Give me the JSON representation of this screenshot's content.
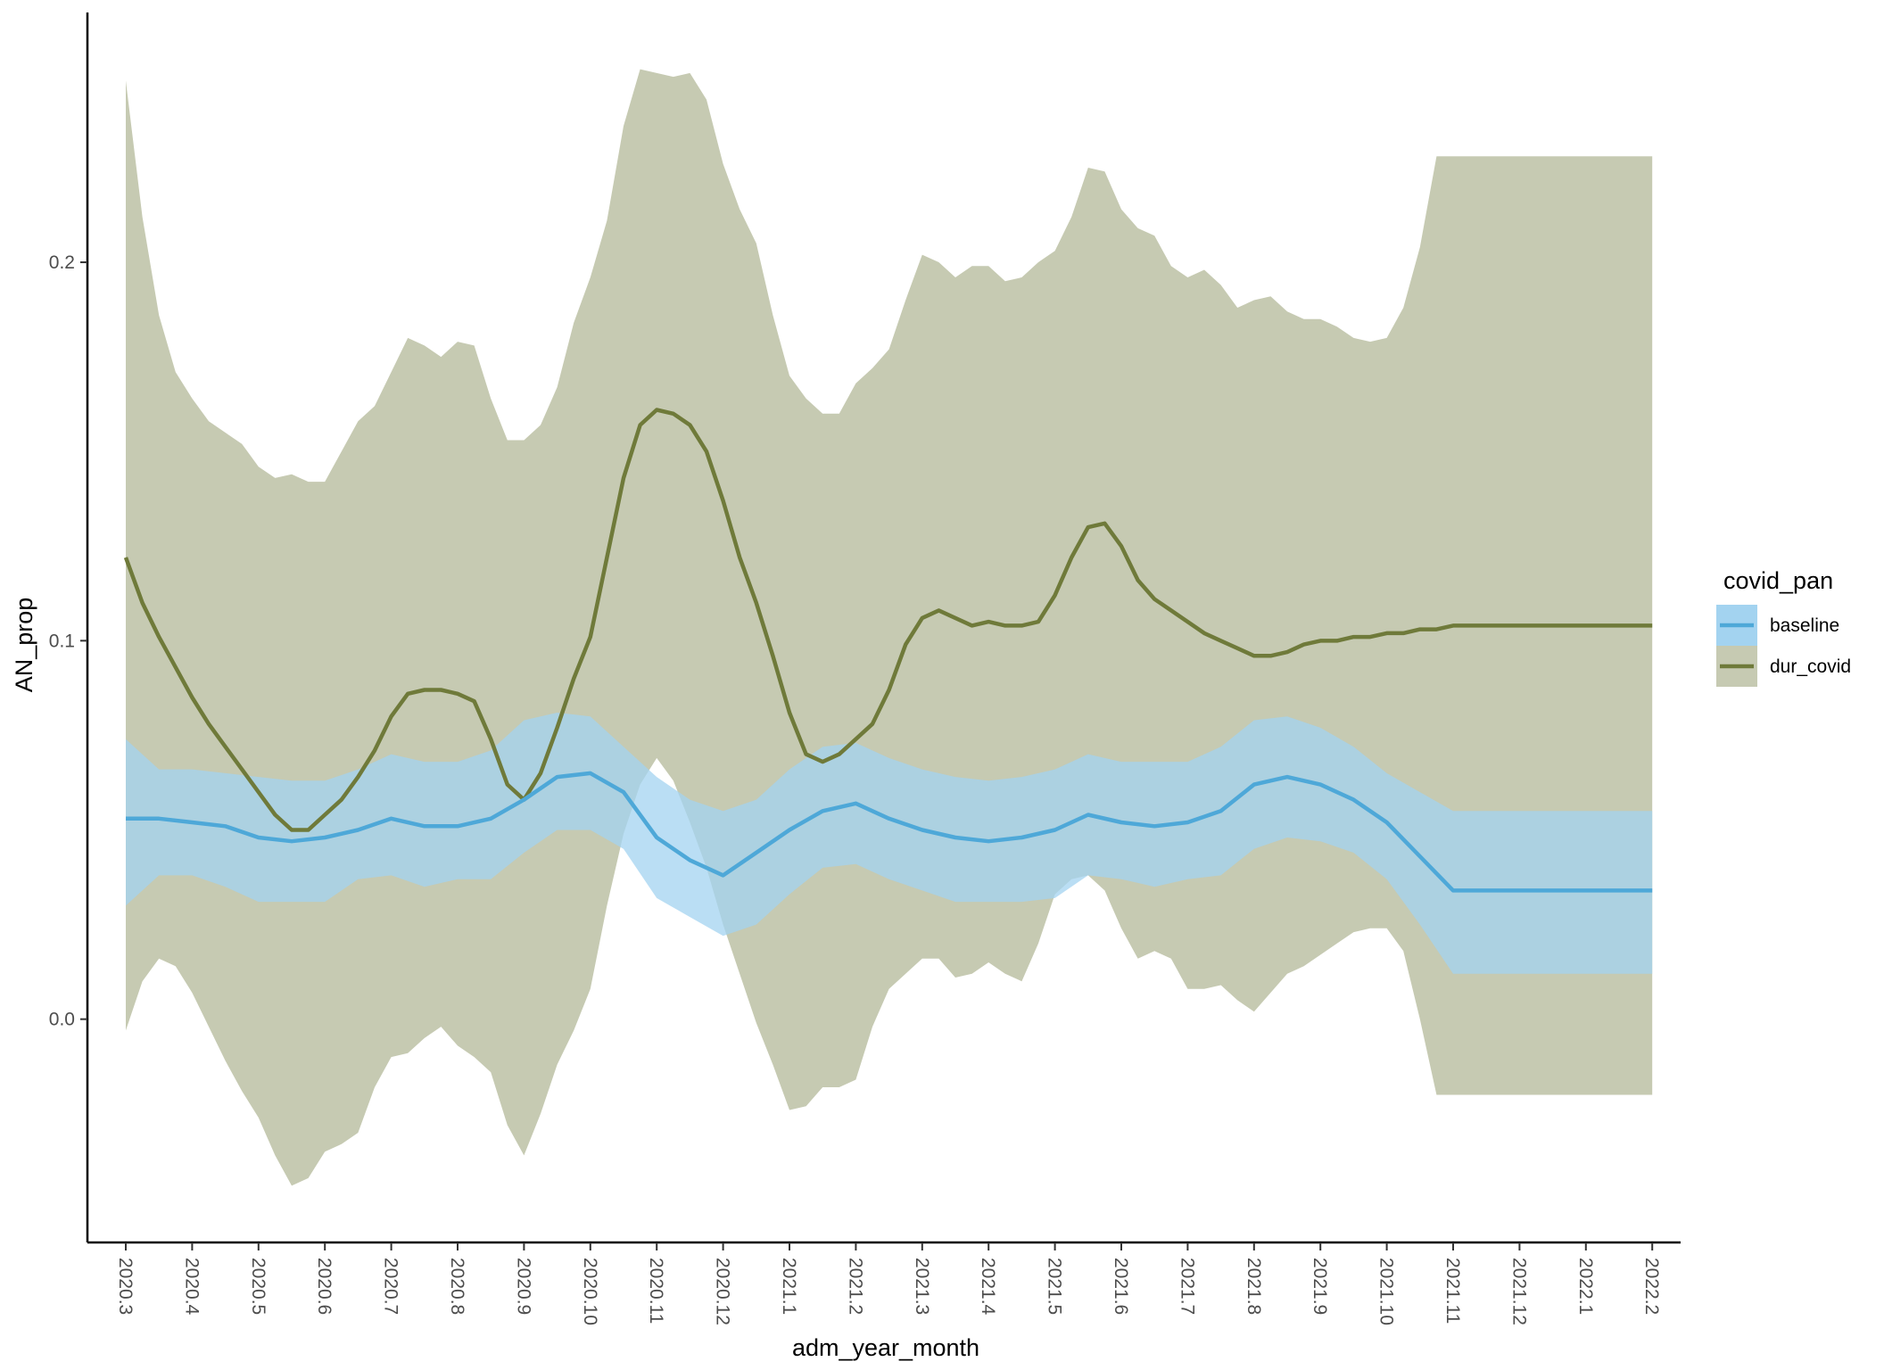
{
  "chart_data": {
    "type": "line",
    "xlabel": "adm_year_month",
    "ylabel": "AN_prop",
    "ylim": [
      -0.059,
      0.266
    ],
    "y_ticks": [
      0.0,
      0.1,
      0.2
    ],
    "y_tick_labels": [
      "0.0",
      "0.1",
      "0.2"
    ],
    "x_tick_labels": [
      "2020.3",
      "2020.4",
      "2020.5",
      "2020.6",
      "2020.7",
      "2020.8",
      "2020.9",
      "2020.10",
      "2020.11",
      "2020.12",
      "2021.1",
      "2021.2",
      "2021.3",
      "2021.4",
      "2021.5",
      "2021.6",
      "2021.7",
      "2021.8",
      "2021.9",
      "2021.10",
      "2021.11",
      "2021.12",
      "2022.1",
      "2022.2"
    ],
    "grid": false,
    "legend": {
      "title": "covid_pan",
      "placement": "right"
    },
    "series": [
      {
        "name": "baseline",
        "color": "#4ea8d8",
        "fill": "#a3d3f0",
        "x": [
          0,
          0.5,
          1,
          1.5,
          2,
          2.5,
          3,
          3.5,
          4,
          4.5,
          5,
          5.5,
          6,
          6.5,
          7,
          7.5,
          8,
          8.5,
          9,
          9.5,
          10,
          10.5,
          11,
          11.5,
          12,
          12.5,
          13,
          13.5,
          14,
          14.5,
          15,
          15.5,
          16,
          16.5,
          17,
          17.5,
          18,
          18.5,
          19,
          19.5,
          20,
          20.5,
          21,
          21.5,
          22,
          22.5,
          23
        ],
        "y": [
          0.053,
          0.053,
          0.052,
          0.051,
          0.048,
          0.047,
          0.048,
          0.05,
          0.053,
          0.051,
          0.051,
          0.053,
          0.058,
          0.064,
          0.065,
          0.06,
          0.048,
          0.042,
          0.038,
          0.044,
          0.05,
          0.055,
          0.057,
          0.053,
          0.05,
          0.048,
          0.047,
          0.048,
          0.05,
          0.054,
          0.052,
          0.051,
          0.052,
          0.055,
          0.062,
          0.064,
          0.062,
          0.058,
          0.052,
          0.043,
          0.034,
          0.034,
          0.034,
          0.034,
          0.034,
          0.034,
          0.034
        ],
        "lower": [
          0.03,
          0.038,
          0.038,
          0.035,
          0.031,
          0.031,
          0.031,
          0.037,
          0.038,
          0.035,
          0.037,
          0.037,
          0.044,
          0.05,
          0.05,
          0.045,
          0.032,
          0.027,
          0.022,
          0.025,
          0.033,
          0.04,
          0.041,
          0.037,
          0.034,
          0.031,
          0.031,
          0.031,
          0.032,
          0.038,
          0.037,
          0.035,
          0.037,
          0.038,
          0.045,
          0.048,
          0.047,
          0.044,
          0.037,
          0.025,
          0.012,
          0.012,
          0.012,
          0.012,
          0.012,
          0.012,
          0.012
        ],
        "upper": [
          0.074,
          0.066,
          0.066,
          0.065,
          0.064,
          0.063,
          0.063,
          0.066,
          0.07,
          0.068,
          0.068,
          0.071,
          0.079,
          0.081,
          0.08,
          0.072,
          0.064,
          0.058,
          0.055,
          0.058,
          0.066,
          0.072,
          0.073,
          0.069,
          0.066,
          0.064,
          0.063,
          0.064,
          0.066,
          0.07,
          0.068,
          0.068,
          0.068,
          0.072,
          0.079,
          0.08,
          0.077,
          0.072,
          0.065,
          0.06,
          0.055,
          0.055,
          0.055,
          0.055,
          0.055,
          0.055,
          0.055
        ]
      },
      {
        "name": "dur_covid",
        "color": "#6f7a3a",
        "fill": "#c6cab2",
        "x": [
          0,
          0.25,
          0.5,
          0.75,
          1,
          1.25,
          1.5,
          1.75,
          2,
          2.25,
          2.5,
          2.75,
          3,
          3.25,
          3.5,
          3.75,
          4,
          4.25,
          4.5,
          4.75,
          5,
          5.25,
          5.5,
          5.75,
          6,
          6.25,
          6.5,
          6.75,
          7,
          7.25,
          7.5,
          7.75,
          8,
          8.25,
          8.5,
          8.75,
          9,
          9.25,
          9.5,
          9.75,
          10,
          10.25,
          10.5,
          10.75,
          11,
          11.25,
          11.5,
          11.75,
          12,
          12.25,
          12.5,
          12.75,
          13,
          13.25,
          13.5,
          13.75,
          14,
          14.25,
          14.5,
          14.75,
          15,
          15.25,
          15.5,
          15.75,
          16,
          16.25,
          16.5,
          16.75,
          17,
          17.25,
          17.5,
          17.75,
          18,
          18.25,
          18.5,
          18.75,
          19,
          19.25,
          19.5,
          19.75,
          20,
          20.25,
          20.5,
          20.75,
          21,
          21.25,
          21.5,
          21.75,
          22,
          22.25,
          22.5,
          22.75,
          23
        ],
        "y": [
          0.122,
          0.11,
          0.101,
          0.093,
          0.085,
          0.078,
          0.072,
          0.066,
          0.06,
          0.054,
          0.05,
          0.05,
          0.054,
          0.058,
          0.064,
          0.071,
          0.08,
          0.086,
          0.087,
          0.087,
          0.086,
          0.084,
          0.074,
          0.062,
          0.058,
          0.065,
          0.077,
          0.09,
          0.101,
          0.122,
          0.143,
          0.157,
          0.161,
          0.16,
          0.157,
          0.15,
          0.137,
          0.122,
          0.11,
          0.096,
          0.081,
          0.07,
          0.068,
          0.07,
          0.074,
          0.078,
          0.087,
          0.099,
          0.106,
          0.108,
          0.106,
          0.104,
          0.105,
          0.104,
          0.104,
          0.105,
          0.112,
          0.122,
          0.13,
          0.131,
          0.125,
          0.116,
          0.111,
          0.108,
          0.105,
          0.102,
          0.1,
          0.098,
          0.096,
          0.096,
          0.097,
          0.099,
          0.1,
          0.1,
          0.101,
          0.101,
          0.102,
          0.102,
          0.103,
          0.103,
          0.104,
          0.104,
          0.104,
          0.104,
          0.104,
          0.104,
          0.104,
          0.104,
          0.104,
          0.104,
          0.104,
          0.104,
          0.104
        ],
        "lower": [
          -0.003,
          0.01,
          0.016,
          0.014,
          0.007,
          -0.002,
          -0.011,
          -0.019,
          -0.026,
          -0.036,
          -0.044,
          -0.042,
          -0.035,
          -0.033,
          -0.03,
          -0.018,
          -0.01,
          -0.009,
          -0.005,
          -0.002,
          -0.007,
          -0.01,
          -0.014,
          -0.028,
          -0.036,
          -0.025,
          -0.012,
          -0.003,
          0.008,
          0.03,
          0.049,
          0.062,
          0.069,
          0.063,
          0.052,
          0.04,
          0.025,
          0.012,
          -0.001,
          -0.012,
          -0.024,
          -0.023,
          -0.018,
          -0.018,
          -0.016,
          -0.002,
          0.008,
          0.012,
          0.016,
          0.016,
          0.011,
          0.012,
          0.015,
          0.012,
          0.01,
          0.02,
          0.033,
          0.037,
          0.038,
          0.034,
          0.024,
          0.016,
          0.018,
          0.016,
          0.008,
          0.008,
          0.009,
          0.005,
          0.002,
          0.007,
          0.012,
          0.014,
          0.017,
          0.02,
          0.023,
          0.024,
          0.024,
          0.018,
          0.0,
          -0.02,
          -0.02,
          -0.02,
          -0.02,
          -0.02,
          -0.02,
          -0.02,
          -0.02,
          -0.02,
          -0.02,
          -0.02,
          -0.02,
          -0.02,
          -0.02
        ],
        "upper": [
          0.248,
          0.212,
          0.186,
          0.171,
          0.164,
          0.158,
          0.155,
          0.152,
          0.146,
          0.143,
          0.144,
          0.142,
          0.142,
          0.15,
          0.158,
          0.162,
          0.171,
          0.18,
          0.178,
          0.175,
          0.179,
          0.178,
          0.164,
          0.153,
          0.153,
          0.157,
          0.167,
          0.184,
          0.196,
          0.211,
          0.236,
          0.251,
          0.25,
          0.249,
          0.25,
          0.243,
          0.226,
          0.214,
          0.205,
          0.186,
          0.17,
          0.164,
          0.16,
          0.16,
          0.168,
          0.172,
          0.177,
          0.19,
          0.202,
          0.2,
          0.196,
          0.199,
          0.199,
          0.195,
          0.196,
          0.2,
          0.203,
          0.212,
          0.225,
          0.224,
          0.214,
          0.209,
          0.207,
          0.199,
          0.196,
          0.198,
          0.194,
          0.188,
          0.19,
          0.191,
          0.187,
          0.185,
          0.185,
          0.183,
          0.18,
          0.179,
          0.18,
          0.188,
          0.204,
          0.228,
          0.228,
          0.228,
          0.228,
          0.228,
          0.228,
          0.228,
          0.228,
          0.228,
          0.228,
          0.228,
          0.228,
          0.228,
          0.228
        ]
      }
    ]
  }
}
